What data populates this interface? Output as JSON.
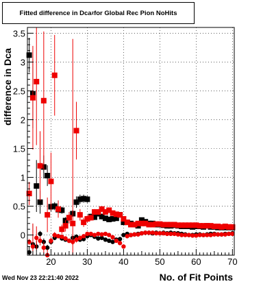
{
  "title_main": "Fitted difference in Dca",
  "title_sub": "z",
  "title_tail": " for Global Rec Pion NoHits",
  "timestamp": "Wed Nov 23 22:21:40 2022",
  "colors": {
    "series_black": "#000000",
    "series_red": "#ee0000",
    "grid": "#000000"
  },
  "chart_data": {
    "type": "scatter",
    "title": "Fitted difference in Dca_z for Global Rec Pion NoHits",
    "xlabel": "No. of Fit Points",
    "ylabel": "difference in Dca",
    "xlim": [
      13.5,
      70.5
    ],
    "ylim": [
      -0.35,
      3.6
    ],
    "xticks": [
      20,
      30,
      40,
      50,
      60,
      70
    ],
    "yticks": [
      0,
      0.5,
      1,
      1.5,
      2,
      2.5,
      3,
      3.5
    ],
    "ytick_labels": [
      "0",
      "0.5",
      "1",
      "1.5",
      "2",
      "2.5",
      "3",
      "3.5"
    ],
    "grid": true,
    "series": [
      {
        "color": "black",
        "marker": "square",
        "x": [
          14,
          15,
          16,
          17,
          18,
          19,
          20,
          21,
          22,
          23,
          24,
          25,
          26,
          27,
          28,
          29,
          30,
          31,
          32,
          33,
          34,
          35,
          36,
          37,
          38,
          39,
          40,
          41,
          42,
          43,
          44,
          45,
          46,
          47,
          48,
          49,
          50,
          51,
          52,
          53,
          54,
          55,
          56,
          57,
          58,
          59,
          60,
          61,
          62,
          63,
          64,
          65,
          66,
          67,
          68,
          69,
          70
        ],
        "y": [
          3.12,
          2.45,
          0.85,
          0.57,
          1.18,
          1.03,
          0.49,
          0.5,
          0.44,
          0.43,
          0.25,
          0.3,
          0.37,
          0.57,
          0.62,
          0.63,
          0.62,
          0.32,
          0.31,
          0.37,
          0.32,
          0.29,
          0.27,
          0.28,
          0.29,
          0.35,
          0.22,
          0.22,
          0.2,
          0.18,
          0.16,
          0.26,
          0.23,
          0.2,
          0.2,
          0.18,
          0.18,
          0.17,
          0.16,
          0.16,
          0.17,
          0.16,
          0.15,
          0.15,
          0.15,
          0.14,
          0.15,
          0.15,
          0.14,
          0.16,
          0.14,
          0.14,
          0.13,
          0.13,
          0.13,
          0.13,
          0.13
        ],
        "yerr": [
          0.3,
          0.6,
          0.45,
          0.2,
          0.2,
          0.18,
          0.08,
          0.07,
          0.07,
          0.06,
          0.06,
          0.06,
          0.06,
          0.1,
          0.08,
          0.07,
          0.06,
          0.05,
          0.05,
          0.05,
          0.05,
          0.04,
          0.04,
          0.04,
          0.04,
          0.04,
          0.03,
          0.03,
          0.03,
          0.03,
          0.03,
          0.03,
          0.03,
          0.03,
          0.03,
          0.03,
          0.03,
          0.03,
          0.03,
          0.03,
          0.03,
          0.03,
          0.03,
          0.03,
          0.03,
          0.03,
          0.03,
          0.03,
          0.03,
          0.03,
          0.03,
          0.03,
          0.03,
          0.03,
          0.03,
          0.03,
          0.03
        ]
      },
      {
        "color": "black",
        "marker": "circle",
        "x": [
          14,
          15,
          16,
          17,
          18,
          19,
          20,
          21,
          22,
          23,
          24,
          25,
          26,
          27,
          28,
          29,
          30,
          31,
          32,
          33,
          34,
          35,
          36,
          37,
          38,
          39,
          40,
          41,
          42,
          43,
          44,
          45,
          46,
          47,
          48,
          49,
          50,
          51,
          52,
          53,
          54,
          55,
          56,
          57,
          58,
          59,
          60,
          61,
          62,
          63,
          64,
          65,
          66,
          67,
          68,
          69,
          70
        ],
        "y": [
          -0.3,
          -0.16,
          -0.2,
          0.02,
          -0.12,
          -0.22,
          -0.12,
          -0.05,
          -0.02,
          -0.06,
          -0.08,
          -0.1,
          -0.05,
          -0.03,
          -0.08,
          -0.07,
          -0.02,
          0.0,
          -0.03,
          -0.06,
          -0.05,
          -0.08,
          -0.1,
          -0.12,
          -0.08,
          -0.07,
          0.0,
          0.02,
          0.0,
          0.01,
          0.02,
          0.03,
          0.04,
          0.04,
          0.03,
          0.04,
          0.03,
          0.04,
          0.03,
          0.04,
          0.03,
          0.03,
          0.02,
          0.01,
          0.0,
          0.0,
          0.01,
          0.01,
          0.0,
          0.01,
          0.02,
          0.02,
          0.01,
          0.01,
          0.02,
          0.02,
          0.03
        ],
        "yerr": [
          0.1,
          0.35,
          0.1,
          0.05,
          0.06,
          0.05,
          0.04,
          0.04,
          0.03,
          0.03,
          0.03,
          0.03,
          0.03,
          0.04,
          0.04,
          0.04,
          0.03,
          0.02,
          0.02,
          0.02,
          0.02,
          0.02,
          0.02,
          0.02,
          0.02,
          0.02,
          0.02,
          0.02,
          0.02,
          0.02,
          0.02,
          0.02,
          0.02,
          0.02,
          0.02,
          0.02,
          0.02,
          0.02,
          0.02,
          0.02,
          0.02,
          0.02,
          0.02,
          0.02,
          0.02,
          0.02,
          0.02,
          0.02,
          0.02,
          0.02,
          0.02,
          0.02,
          0.02,
          0.02,
          0.02,
          0.02,
          0.02
        ]
      },
      {
        "color": "red",
        "marker": "square",
        "x": [
          14,
          15,
          16,
          17,
          18,
          19,
          20,
          21,
          22,
          23,
          24,
          25,
          26,
          27,
          28,
          29,
          30,
          31,
          32,
          33,
          34,
          35,
          36,
          37,
          38,
          39,
          40,
          41,
          42,
          43,
          44,
          45,
          46,
          47,
          48,
          49,
          50,
          51,
          52,
          53,
          54,
          55,
          56,
          57,
          58,
          59,
          60,
          61,
          62,
          63,
          64,
          65,
          66,
          67,
          68,
          69,
          70
        ],
        "y": [
          0.72,
          2.38,
          2.66,
          1.2,
          2.33,
          0.35,
          0.93,
          2.77,
          0.45,
          0.1,
          0.16,
          0.3,
          0.2,
          1.81,
          0.35,
          0.22,
          0.28,
          0.3,
          0.4,
          0.4,
          0.45,
          0.4,
          0.43,
          0.38,
          0.36,
          0.35,
          0.28,
          0.22,
          0.18,
          0.18,
          0.2,
          0.2,
          0.2,
          0.18,
          0.18,
          0.19,
          0.19,
          0.18,
          0.18,
          0.18,
          0.18,
          0.17,
          0.17,
          0.17,
          0.17,
          0.17,
          0.17,
          0.16,
          0.16,
          0.16,
          0.16,
          0.15,
          0.15,
          0.14,
          0.15,
          0.14,
          0.14
        ],
        "yerr": [
          0.2,
          0.9,
          1.1,
          0.6,
          1.2,
          0.3,
          0.5,
          0.7,
          0.15,
          0.08,
          0.1,
          0.1,
          3.2,
          0.5,
          0.1,
          0.08,
          0.06,
          0.05,
          0.05,
          0.05,
          0.05,
          0.05,
          0.04,
          0.04,
          0.04,
          0.04,
          0.03,
          0.03,
          0.03,
          0.03,
          0.03,
          0.03,
          0.03,
          0.03,
          0.03,
          0.03,
          0.03,
          0.03,
          0.03,
          0.03,
          0.03,
          0.03,
          0.03,
          0.03,
          0.03,
          0.03,
          0.03,
          0.03,
          0.03,
          0.03,
          0.03,
          0.03,
          0.03,
          0.03,
          0.03,
          0.03,
          0.03
        ]
      },
      {
        "color": "red",
        "marker": "circle",
        "x": [
          14,
          15,
          16,
          17,
          18,
          19,
          20,
          21,
          22,
          23,
          24,
          25,
          26,
          27,
          28,
          29,
          30,
          31,
          32,
          33,
          34,
          35,
          36,
          37,
          38,
          39,
          40,
          41,
          42,
          43,
          44,
          45,
          46,
          47,
          48,
          49,
          50,
          51,
          52,
          53,
          54,
          55,
          56,
          57,
          58,
          59,
          60,
          61,
          62,
          63,
          64,
          65,
          66,
          67,
          68,
          69,
          70
        ],
        "y": [
          -0.12,
          -0.2,
          -0.05,
          -0.1,
          -0.22,
          -0.35,
          -0.1,
          0.0,
          -0.02,
          -0.03,
          -0.06,
          -0.1,
          -0.12,
          -0.08,
          -0.05,
          -0.02,
          0.02,
          0.02,
          0.0,
          0.02,
          0.01,
          0.02,
          0.0,
          -0.04,
          -0.1,
          -0.14,
          -0.2,
          -0.02,
          0.0,
          0.01,
          0.01,
          0.03,
          0.04,
          0.04,
          0.04,
          0.03,
          0.03,
          0.03,
          0.02,
          0.02,
          0.02,
          0.01,
          0.0,
          0.0,
          0.0,
          -0.01,
          -0.01,
          0.0,
          0.0,
          0.0,
          0.0,
          0.01,
          0.01,
          0.01,
          0.01,
          0.02,
          0.02
        ],
        "yerr": [
          0.05,
          0.4,
          0.2,
          0.08,
          0.1,
          0.1,
          0.06,
          0.05,
          0.04,
          0.04,
          0.04,
          0.04,
          0.05,
          0.05,
          0.04,
          0.03,
          0.03,
          0.03,
          0.03,
          0.03,
          0.03,
          0.03,
          0.03,
          0.03,
          0.03,
          0.03,
          0.03,
          0.02,
          0.02,
          0.02,
          0.02,
          0.02,
          0.02,
          0.02,
          0.02,
          0.02,
          0.02,
          0.02,
          0.02,
          0.02,
          0.02,
          0.02,
          0.02,
          0.02,
          0.02,
          0.02,
          0.02,
          0.02,
          0.02,
          0.02,
          0.02,
          0.02,
          0.02,
          0.02,
          0.02,
          0.02,
          0.02
        ]
      }
    ]
  }
}
